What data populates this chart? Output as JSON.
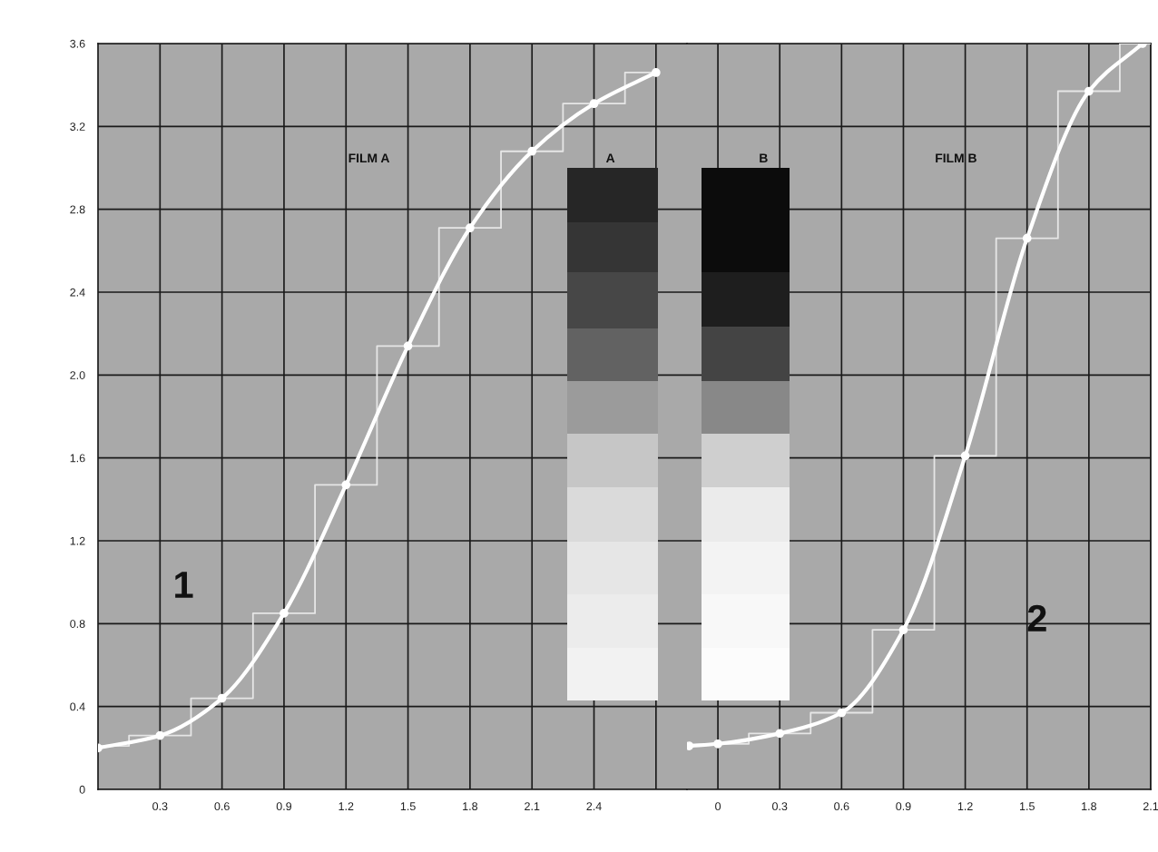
{
  "chart_data": [
    {
      "type": "line",
      "xlim": [
        0,
        2.85
      ],
      "ylim": [
        0,
        3.6
      ],
      "xticks": [
        0.3,
        0.6,
        0.9,
        1.2,
        1.5,
        1.8,
        2.1,
        2.4,
        {
          "value": 2.7,
          "label": null
        }
      ],
      "yticks": [
        0,
        0.4,
        0.8,
        1.2,
        1.6,
        {
          "value": 2.0,
          "label": "2.0"
        },
        2.4,
        2.8,
        3.2,
        3.6
      ],
      "grid": true,
      "marker": "circle",
      "line_style": "solid",
      "annotations": [
        "FILM A",
        "A",
        "1"
      ],
      "series": [
        {
          "color": "#ffffff",
          "x": [
            0,
            0.3,
            0.6,
            0.9,
            1.2,
            1.5,
            1.8,
            2.1,
            2.4,
            2.7
          ],
          "values": [
            0.2,
            0.26,
            0.44,
            0.85,
            1.47,
            2.14,
            2.71,
            3.08,
            3.31,
            3.46
          ]
        },
        {
          "type": "step",
          "marker": "none",
          "color": "#e6e6e6",
          "x": [
            0,
            0.3,
            0.6,
            0.9,
            1.2,
            1.5,
            1.8,
            2.1,
            2.4,
            2.7
          ],
          "values": [
            0.21,
            0.26,
            0.44,
            0.85,
            1.47,
            2.14,
            2.71,
            3.08,
            3.31,
            3.46
          ]
        }
      ]
    },
    {
      "type": "line",
      "xlim": [
        -0.15,
        2.1
      ],
      "ylim": [
        0,
        3.6
      ],
      "xticks": [
        0,
        0.3,
        0.6,
        0.9,
        1.2,
        1.5,
        1.8,
        2.1
      ],
      "yticks": [
        0,
        0.4,
        0.8,
        1.2,
        1.6,
        2.0,
        2.4,
        2.8,
        3.2,
        3.6
      ],
      "tick_labels": "x",
      "grid": true,
      "marker": "circle",
      "line_style": "solid",
      "annotations": [
        "B",
        "FILM B",
        "2"
      ],
      "series": [
        {
          "color": "#ffffff",
          "x": [
            -0.14,
            0,
            0.3,
            0.6,
            0.9,
            1.2,
            1.5,
            1.8,
            2.06
          ],
          "values": [
            0.21,
            0.22,
            0.27,
            0.37,
            0.77,
            1.61,
            2.66,
            3.37,
            3.6
          ]
        },
        {
          "type": "step",
          "marker": "none",
          "color": "#e6e6e6",
          "x": [
            0,
            0.3,
            0.6,
            0.9,
            1.2,
            1.5,
            1.8,
            2.1
          ],
          "values": [
            0.22,
            0.27,
            0.37,
            0.77,
            1.61,
            2.66,
            3.37,
            3.6
          ]
        }
      ]
    }
  ]
}
